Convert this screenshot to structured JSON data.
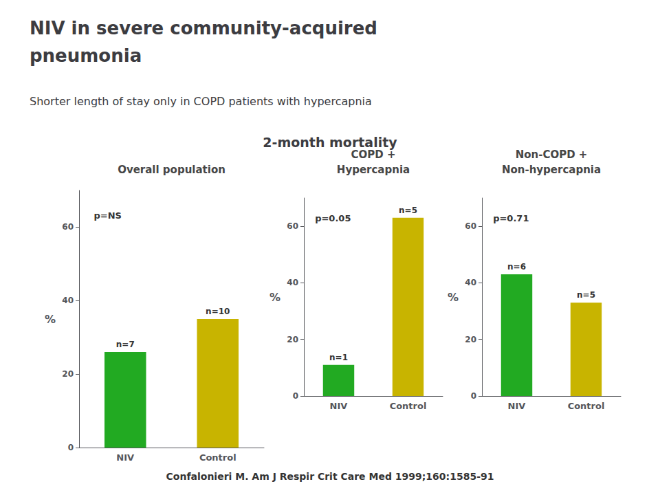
{
  "title": "NIV in severe community-acquired\npneumonia",
  "subtitle": "Shorter length of stay only in COPD patients with hypercapnia",
  "annotations": [
    "2-month mortality",
    "Confalonieri M. Am J Respir Crit Care Med 1999;160:1585-91"
  ],
  "chart_data": [
    {
      "type": "bar",
      "title": "Overall population",
      "categories": [
        "NIV",
        "Control"
      ],
      "values": [
        26,
        35
      ],
      "colors": [
        "#22AA22",
        "#C8B400"
      ],
      "ylabel": "%",
      "ylim": [
        0,
        70
      ],
      "yticks": [
        0,
        20,
        40,
        60
      ],
      "grid": false,
      "annotations": [
        {
          "text": "p=NS"
        },
        {
          "text": "n=7",
          "category": "NIV"
        },
        {
          "text": "n=10",
          "category": "Control"
        }
      ]
    },
    {
      "type": "bar",
      "title": "COPD +\nHypercapnia",
      "categories": [
        "NIV",
        "Control"
      ],
      "values": [
        11,
        63
      ],
      "colors": [
        "#22AA22",
        "#C8B400"
      ],
      "ylabel": "%",
      "ylim": [
        0,
        70
      ],
      "yticks": [
        0,
        20,
        40,
        60
      ],
      "grid": false,
      "annotations": [
        {
          "text": "p=0.05"
        },
        {
          "text": "n=1",
          "category": "NIV"
        },
        {
          "text": "n=5",
          "category": "Control"
        }
      ]
    },
    {
      "type": "bar",
      "title": "Non-COPD +\nNon-hypercapnia",
      "categories": [
        "NIV",
        "Control"
      ],
      "values": [
        43,
        33
      ],
      "colors": [
        "#22AA22",
        "#C8B400"
      ],
      "ylabel": "%",
      "ylim": [
        0,
        70
      ],
      "yticks": [
        0,
        20,
        40,
        60
      ],
      "grid": false,
      "annotations": [
        {
          "text": "p=0.71"
        },
        {
          "text": "n=6",
          "category": "NIV"
        },
        {
          "text": "n=5",
          "category": "Control"
        }
      ]
    }
  ]
}
